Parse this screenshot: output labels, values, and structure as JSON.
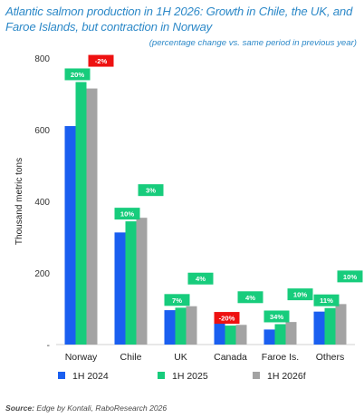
{
  "header": {
    "title": "Atlantic salmon production in 1H 2026: Growth in Chile, the UK, and Faroe Islands, but contraction in Norway",
    "subtitle": "(percentage change vs. same period in previous year)"
  },
  "footer": {
    "source_label": "Source:",
    "source_text": "Edge by Kontali, RaboResearch 2026"
  },
  "colors": {
    "series_2024": "#1a5ff0",
    "series_2025": "#17cc7c",
    "series_2026f": "#a3a3a3",
    "label_positive": "#17cc7c",
    "label_negative": "#ee1111",
    "title": "#2d89c8"
  },
  "chart_data": {
    "type": "bar",
    "ylabel": "Thousand metric tons",
    "ylim": [
      0,
      800
    ],
    "yticks": [
      "-",
      "200",
      "400",
      "600",
      "800"
    ],
    "grid": false,
    "legend_position": "bottom",
    "categories": [
      "Norway",
      "Chile",
      "UK",
      "Canada",
      "Faroe Is.",
      "Others"
    ],
    "series": [
      {
        "name": "1H 2024",
        "values": [
          610,
          313,
          96,
          66,
          42,
          92
        ]
      },
      {
        "name": "1H 2025",
        "values": [
          733,
          344,
          103,
          53,
          57,
          102
        ]
      },
      {
        "name": "1H 2026f",
        "values": [
          715,
          354,
          107,
          55,
          63,
          113
        ]
      }
    ],
    "change_labels": [
      {
        "category": "Norway",
        "series": "1H 2025",
        "text": "20%",
        "sign": "positive"
      },
      {
        "category": "Norway",
        "series": "1H 2026f",
        "text": "-2%",
        "sign": "negative"
      },
      {
        "category": "Chile",
        "series": "1H 2025",
        "text": "10%",
        "sign": "positive"
      },
      {
        "category": "Chile",
        "series": "1H 2026f",
        "text": "3%",
        "sign": "positive"
      },
      {
        "category": "UK",
        "series": "1H 2025",
        "text": "7%",
        "sign": "positive"
      },
      {
        "category": "UK",
        "series": "1H 2026f",
        "text": "4%",
        "sign": "positive"
      },
      {
        "category": "Canada",
        "series": "1H 2025",
        "text": "-20%",
        "sign": "negative"
      },
      {
        "category": "Canada",
        "series": "1H 2026f",
        "text": "4%",
        "sign": "positive"
      },
      {
        "category": "Faroe Is.",
        "series": "1H 2025",
        "text": "34%",
        "sign": "positive"
      },
      {
        "category": "Faroe Is.",
        "series": "1H 2026f",
        "text": "10%",
        "sign": "positive"
      },
      {
        "category": "Others",
        "series": "1H 2025",
        "text": "11%",
        "sign": "positive"
      },
      {
        "category": "Others",
        "series": "1H 2026f",
        "text": "10%",
        "sign": "positive"
      }
    ]
  }
}
